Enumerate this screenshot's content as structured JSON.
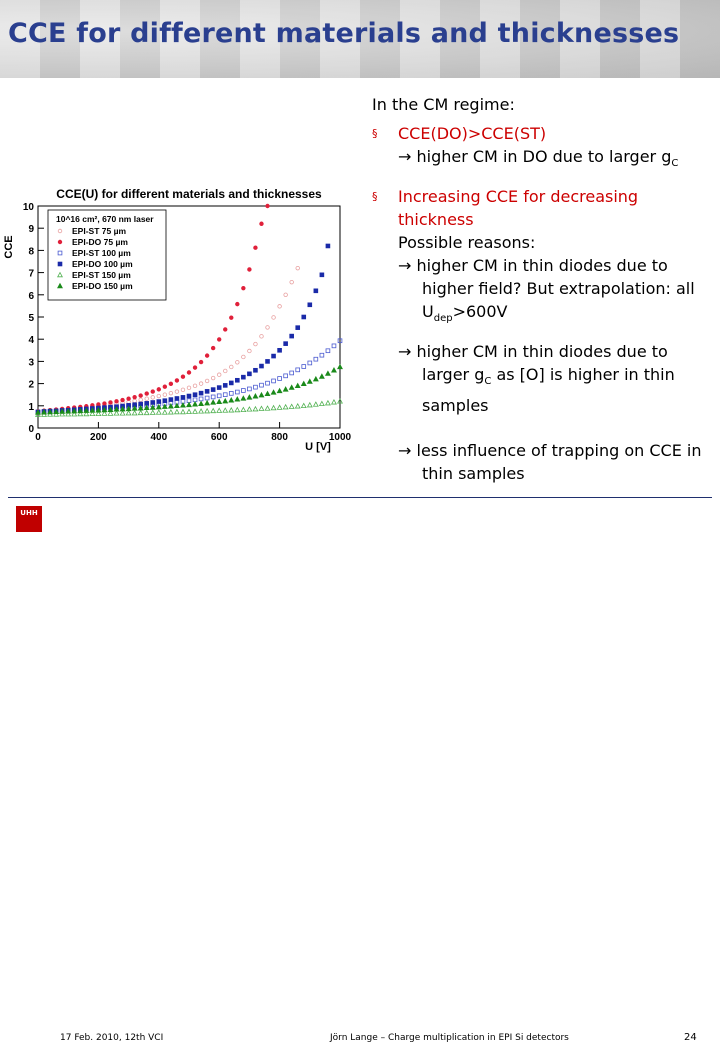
{
  "slide": {
    "title": "CCE for different materials and thicknesses",
    "colors": {
      "title": "#2a3f8f",
      "accent": "#cc0000",
      "footer_line": "#1f2f6e"
    }
  },
  "text": {
    "regime": "In the CM regime:",
    "b1_line1": "CCE(DO)>CCE(ST)",
    "b1_arrow": "→",
    "b1_line2_pre": " higher CM in DO due to larger g",
    "b1_line2_sub": "C",
    "b2_l1": "Increasing CCE for decreasing",
    "b2_l2": "thickness",
    "b2_l3": "Possible reasons:",
    "r1_pre": " higher CM in thin diodes due to",
    "r1_l2": "higher field? But extrapolation: all",
    "r1_l3_pre": "U",
    "r1_l3_sub": "dep",
    "r1_l3_post": ">600V",
    "r2_pre": " higher CM in thin diodes due to",
    "r2_l2_pre": "larger g",
    "r2_l2_sub": "C",
    "r2_l2_post": " as [O] is higher in thin",
    "r2_l3": "samples",
    "r3_pre": " less influence of trapping on CCE in",
    "r3_l2": "thin samples",
    "bullet_glyph": "§",
    "arrow": "→"
  },
  "footer": {
    "logo": "UHH",
    "date": "17 Feb. 2010,  12th VCI",
    "author": "Jörn Lange – Charge multiplication in EPI Si detectors",
    "page": "24"
  },
  "chart_data": {
    "type": "scatter",
    "title": "CCE(U) for different materials and thicknesses",
    "ylabel": "CCE",
    "xlabel": "U [V]",
    "xlim": [
      0,
      1000
    ],
    "ylim": [
      0,
      10
    ],
    "xticks": [
      "0",
      "200",
      "400",
      "600",
      "800",
      "1000"
    ],
    "yticks": [
      "0",
      "1",
      "2",
      "3",
      "4",
      "5",
      "6",
      "7",
      "8",
      "9",
      "10"
    ],
    "legend_header": "10^16 cm², 670 nm laser",
    "legend_position": "top-left",
    "series": [
      {
        "name": "EPI-ST 75 µm",
        "color": "#e8a0a0",
        "marker": "circle-open",
        "x": [
          0,
          20,
          40,
          60,
          80,
          100,
          120,
          140,
          160,
          180,
          200,
          220,
          240,
          260,
          280,
          300,
          320,
          340,
          360,
          380,
          400,
          420,
          440,
          460,
          480,
          500,
          520,
          540,
          560,
          580,
          600,
          620,
          640,
          660,
          680,
          700,
          720,
          740,
          760,
          780,
          800,
          820,
          840,
          860
        ],
        "y": [
          0.75,
          0.78,
          0.8,
          0.82,
          0.84,
          0.86,
          0.88,
          0.9,
          0.93,
          0.96,
          1.0,
          1.03,
          1.06,
          1.1,
          1.14,
          1.18,
          1.22,
          1.27,
          1.32,
          1.38,
          1.44,
          1.5,
          1.57,
          1.64,
          1.72,
          1.81,
          1.9,
          2.0,
          2.12,
          2.25,
          2.4,
          2.57,
          2.75,
          2.96,
          3.2,
          3.47,
          3.78,
          4.13,
          4.53,
          4.98,
          5.48,
          6.0,
          6.57,
          7.2
        ]
      },
      {
        "name": "EPI-DO 75 µm",
        "color": "#e0203a",
        "marker": "circle-filled",
        "x": [
          0,
          20,
          40,
          60,
          80,
          100,
          120,
          140,
          160,
          180,
          200,
          220,
          240,
          260,
          280,
          300,
          320,
          340,
          360,
          380,
          400,
          420,
          440,
          460,
          480,
          500,
          520,
          540,
          560,
          580,
          600,
          620,
          640,
          660,
          680,
          700,
          720,
          740,
          760
        ],
        "y": [
          0.75,
          0.78,
          0.8,
          0.83,
          0.86,
          0.89,
          0.92,
          0.95,
          0.98,
          1.02,
          1.06,
          1.1,
          1.15,
          1.2,
          1.26,
          1.32,
          1.39,
          1.46,
          1.55,
          1.64,
          1.74,
          1.86,
          1.99,
          2.14,
          2.31,
          2.5,
          2.72,
          2.97,
          3.26,
          3.6,
          3.99,
          4.44,
          4.97,
          5.58,
          6.3,
          7.14,
          8.12,
          9.2,
          10.0
        ]
      },
      {
        "name": "EPI-ST 100 µm",
        "color": "#4a5ad0",
        "marker": "square-open",
        "x": [
          0,
          20,
          40,
          60,
          80,
          100,
          120,
          140,
          160,
          180,
          200,
          220,
          240,
          260,
          280,
          300,
          320,
          340,
          360,
          380,
          400,
          420,
          440,
          460,
          480,
          500,
          520,
          540,
          560,
          580,
          600,
          620,
          640,
          660,
          680,
          700,
          720,
          740,
          760,
          780,
          800,
          820,
          840,
          860,
          880,
          900,
          920,
          940,
          960,
          980,
          1000
        ],
        "y": [
          0.72,
          0.74,
          0.75,
          0.76,
          0.78,
          0.79,
          0.8,
          0.82,
          0.83,
          0.85,
          0.87,
          0.88,
          0.9,
          0.92,
          0.94,
          0.96,
          0.98,
          1.0,
          1.02,
          1.05,
          1.08,
          1.1,
          1.13,
          1.16,
          1.2,
          1.23,
          1.27,
          1.31,
          1.35,
          1.4,
          1.45,
          1.5,
          1.56,
          1.62,
          1.69,
          1.76,
          1.84,
          1.93,
          2.02,
          2.12,
          2.23,
          2.35,
          2.48,
          2.62,
          2.77,
          2.93,
          3.1,
          3.28,
          3.48,
          3.7,
          3.93
        ]
      },
      {
        "name": "EPI-DO 100 µm",
        "color": "#1a2aa8",
        "marker": "square-filled",
        "x": [
          0,
          20,
          40,
          60,
          80,
          100,
          120,
          140,
          160,
          180,
          200,
          220,
          240,
          260,
          280,
          300,
          320,
          340,
          360,
          380,
          400,
          420,
          440,
          460,
          480,
          500,
          520,
          540,
          560,
          580,
          600,
          620,
          640,
          660,
          680,
          700,
          720,
          740,
          760,
          780,
          800,
          820,
          840,
          860,
          880,
          900,
          920,
          940,
          960
        ],
        "y": [
          0.72,
          0.74,
          0.76,
          0.77,
          0.79,
          0.8,
          0.82,
          0.84,
          0.86,
          0.88,
          0.9,
          0.92,
          0.94,
          0.96,
          0.99,
          1.02,
          1.05,
          1.08,
          1.11,
          1.15,
          1.19,
          1.23,
          1.28,
          1.33,
          1.38,
          1.44,
          1.5,
          1.57,
          1.65,
          1.73,
          1.82,
          1.92,
          2.03,
          2.15,
          2.29,
          2.44,
          2.6,
          2.79,
          3.0,
          3.24,
          3.5,
          3.8,
          4.14,
          4.52,
          5.0,
          5.55,
          6.18,
          6.9,
          8.2
        ]
      },
      {
        "name": "EPI-ST 150 µm",
        "color": "#50b050",
        "marker": "triangle-open",
        "x": [
          0,
          20,
          40,
          60,
          80,
          100,
          120,
          140,
          160,
          180,
          200,
          220,
          240,
          260,
          280,
          300,
          320,
          340,
          360,
          380,
          400,
          420,
          440,
          460,
          480,
          500,
          520,
          540,
          560,
          580,
          600,
          620,
          640,
          660,
          680,
          700,
          720,
          740,
          760,
          780,
          800,
          820,
          840,
          860,
          880,
          900,
          920,
          940,
          960,
          980,
          1000
        ],
        "y": [
          0.6,
          0.6,
          0.61,
          0.61,
          0.62,
          0.62,
          0.62,
          0.63,
          0.63,
          0.64,
          0.64,
          0.65,
          0.65,
          0.66,
          0.66,
          0.67,
          0.67,
          0.68,
          0.68,
          0.69,
          0.7,
          0.7,
          0.71,
          0.72,
          0.72,
          0.73,
          0.74,
          0.75,
          0.76,
          0.77,
          0.78,
          0.79,
          0.8,
          0.81,
          0.82,
          0.84,
          0.85,
          0.87,
          0.88,
          0.9,
          0.92,
          0.94,
          0.96,
          0.98,
          1.0,
          1.03,
          1.06,
          1.09,
          1.12,
          1.16,
          1.2
        ]
      },
      {
        "name": "EPI-DO 150 µm",
        "color": "#1a8a1a",
        "marker": "triangle-filled",
        "x": [
          0,
          20,
          40,
          60,
          80,
          100,
          120,
          140,
          160,
          180,
          200,
          220,
          240,
          260,
          280,
          300,
          320,
          340,
          360,
          380,
          400,
          420,
          440,
          460,
          480,
          500,
          520,
          540,
          560,
          580,
          600,
          620,
          640,
          660,
          680,
          700,
          720,
          740,
          760,
          780,
          800,
          820,
          840,
          860,
          880,
          900,
          920,
          940,
          960,
          980,
          1000
        ],
        "y": [
          0.7,
          0.71,
          0.72,
          0.73,
          0.74,
          0.75,
          0.76,
          0.77,
          0.78,
          0.79,
          0.8,
          0.81,
          0.82,
          0.84,
          0.85,
          0.86,
          0.88,
          0.89,
          0.91,
          0.92,
          0.94,
          0.96,
          0.98,
          1.0,
          1.02,
          1.04,
          1.07,
          1.09,
          1.12,
          1.15,
          1.18,
          1.21,
          1.25,
          1.29,
          1.33,
          1.38,
          1.43,
          1.48,
          1.54,
          1.6,
          1.67,
          1.74,
          1.82,
          1.9,
          1.99,
          2.09,
          2.2,
          2.32,
          2.45,
          2.6,
          2.75
        ]
      }
    ]
  }
}
